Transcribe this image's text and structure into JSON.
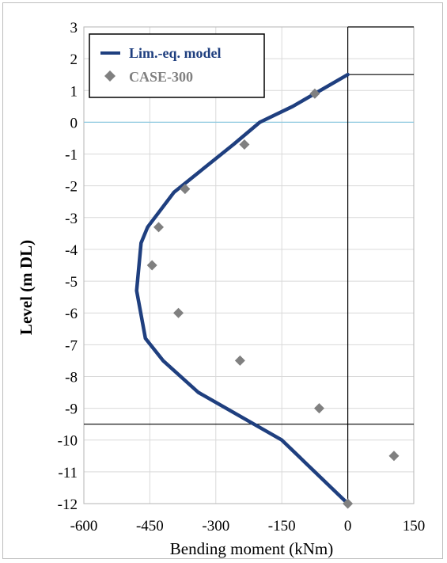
{
  "colors": {
    "model_line": "#1F3F7F",
    "case_markers": "#808080",
    "grid": "#d9d9d9",
    "zero_level_line": "#8ec9e0",
    "axis": "#000000"
  },
  "chart_data": {
    "type": "line",
    "xlabel": "Bending moment (kNm)",
    "ylabel": "Level (m DL)",
    "xlim": [
      -600,
      150
    ],
    "ylim": [
      -12,
      3
    ],
    "x_ticks": [
      "-600",
      "-450",
      "-300",
      "-150",
      "0",
      "150"
    ],
    "y_ticks": [
      "3",
      "2",
      "1",
      "0",
      "-1",
      "-2",
      "-3",
      "-4",
      "-5",
      "-6",
      "-7",
      "-8",
      "-9",
      "-10",
      "-11",
      "-12"
    ],
    "grid": true,
    "legend_position": "top-left",
    "series": [
      {
        "name": "Lim.-eq. model",
        "style": "line",
        "color": "#1F3F7F",
        "points": [
          [
            0,
            1.5
          ],
          [
            -125,
            0.5
          ],
          [
            -200,
            0
          ],
          [
            -260,
            -0.7
          ],
          [
            -395,
            -2.2
          ],
          [
            -455,
            -3.3
          ],
          [
            -470,
            -3.8
          ],
          [
            -480,
            -5.3
          ],
          [
            -460,
            -6.8
          ],
          [
            -420,
            -7.5
          ],
          [
            -340,
            -8.5
          ],
          [
            -150,
            -10.0
          ],
          [
            0,
            -12.0
          ]
        ]
      },
      {
        "name": "CASE-300",
        "style": "marker",
        "color": "#808080",
        "points": [
          [
            -75,
            0.9
          ],
          [
            -235,
            -0.7
          ],
          [
            -370,
            -2.1
          ],
          [
            -430,
            -3.3
          ],
          [
            -445,
            -4.5
          ],
          [
            -385,
            -6.0
          ],
          [
            -245,
            -7.5
          ],
          [
            -65,
            -9.0
          ],
          [
            0,
            -12.0
          ],
          [
            105,
            -10.5
          ]
        ]
      }
    ],
    "reference_lines": [
      {
        "orientation": "horizontal",
        "y": 0,
        "color": "#8ec9e0"
      },
      {
        "orientation": "horizontal",
        "y": -9.5,
        "color": "#000000"
      },
      {
        "orientation": "horizontal",
        "y": 1.5,
        "color": "#000000"
      },
      {
        "orientation": "vertical",
        "x": 0,
        "color": "#000000"
      }
    ]
  }
}
